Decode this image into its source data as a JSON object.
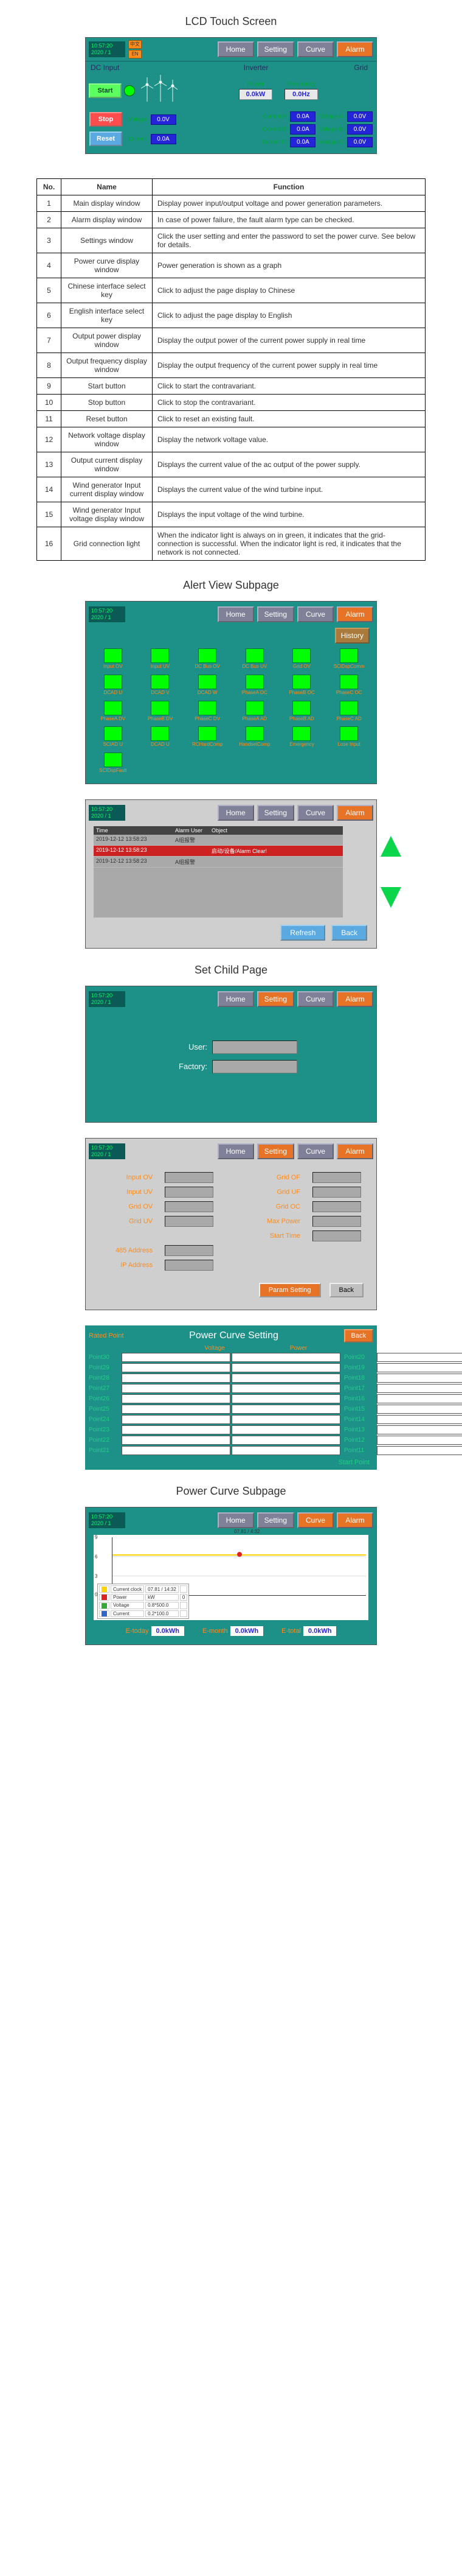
{
  "titles": {
    "main": "LCD Touch Screen",
    "alert": "Alert View Subpage",
    "setChild": "Set Child Page",
    "curve": "Power Curve Subpage"
  },
  "clock": {
    "time": "10:57:20",
    "date": "2020 / 1",
    "light": "0"
  },
  "lang": {
    "cn": "中文",
    "en": "EN"
  },
  "nav": {
    "home": "Home",
    "setting": "Setting",
    "curve": "Curve",
    "alarm": "Alarm"
  },
  "headers": {
    "dc": "DC Input",
    "inv": "Inverter",
    "grid": "Grid"
  },
  "out": {
    "powerLbl": "Power",
    "powerVal": "0.0kW",
    "freqLbl": "Frequency",
    "freqVal": "0.0Hz"
  },
  "btns": {
    "start": "Start",
    "stop": "Stop",
    "reset": "Reset"
  },
  "dc": {
    "voltLbl": "Voltage:",
    "voltVal": "0.0V",
    "curLbl": "Current:",
    "curVal": "0.0A"
  },
  "inv": {
    "iaLbl": "Current A:",
    "iaVal": "0.0A",
    "ibLbl": "Current B:",
    "ibVal": "0.0A",
    "icLbl": "Current C:",
    "icVal": "0.0A"
  },
  "grid": {
    "vaLbl": "Voltage A:",
    "vaVal": "0.0V",
    "vbLbl": "Voltage B:",
    "vbVal": "0.0V",
    "vcLbl": "Voltage C:",
    "vcVal": "0.0V"
  },
  "table": {
    "hNo": "No.",
    "hName": "Name",
    "hFunc": "Function",
    "rows": [
      {
        "no": "1",
        "name": "Main display window",
        "func": "Display power input/output voltage and power generation parameters."
      },
      {
        "no": "2",
        "name": "Alarm display window",
        "func": "In case of power failure, the fault alarm type can be checked."
      },
      {
        "no": "3",
        "name": "Settings window",
        "func": "Click the user setting and enter the password to set the power curve. See below for details."
      },
      {
        "no": "4",
        "name": "Power curve display window",
        "func": "Power generation is shown as a graph"
      },
      {
        "no": "5",
        "name": "Chinese interface select key",
        "func": "Click to adjust the page display to Chinese"
      },
      {
        "no": "6",
        "name": "English interface select key",
        "func": "Click to adjust the page display to English"
      },
      {
        "no": "7",
        "name": "Output power display window",
        "func": "Display the output power of the current power supply in real time"
      },
      {
        "no": "8",
        "name": "Output frequency display window",
        "func": "Display the output frequency of the current power supply in real time"
      },
      {
        "no": "9",
        "name": "Start button",
        "func": "Click to start the contravariant."
      },
      {
        "no": "10",
        "name": "Stop button",
        "func": "Click to stop the contravariant."
      },
      {
        "no": "11",
        "name": "Reset button",
        "func": "Click to reset an existing fault."
      },
      {
        "no": "12",
        "name": "Network voltage display window",
        "func": "Display the network voltage value."
      },
      {
        "no": "13",
        "name": "Output current display window",
        "func": "Displays the current value of the ac output of the power supply."
      },
      {
        "no": "14",
        "name": "Wind generator Input current display window",
        "func": "Displays the current value of the wind turbine input."
      },
      {
        "no": "15",
        "name": "Wind generator Input voltage display window",
        "func": "Displays the input voltage of the wind turbine."
      },
      {
        "no": "16",
        "name": "Grid connection light",
        "func": "When the indicator light is always on in green, it indicates that the grid-connection is successful. When the indicator light is red, it indicates that the network is not connected."
      }
    ]
  },
  "alerts": {
    "history": "History",
    "items": [
      "Input OV",
      "Input UV",
      "DC Bus OV",
      "DC Bus UV",
      "Grid OV",
      "SCIDspComm",
      "DCAD U",
      "DCAD V",
      "DCAD W",
      "PhaseA OC",
      "PhaseB OC",
      "PhaseC OC",
      "PhaseA DV",
      "PhaseB DV",
      "PhaseC DV",
      "PhaseA AD",
      "PhaseB AD",
      "PhaseC AD",
      "SCIAD U",
      "DCAD U",
      "RCHardComp",
      "HandsetComp",
      "Emergency",
      "Lose Input",
      "SCIDspFault"
    ]
  },
  "alertTable": {
    "h1": "Time",
    "h2": "Alarm User",
    "h3": "Object",
    "refresh": "Refresh",
    "back": "Back",
    "rows": [
      {
        "ts": "2019-12-12 13:58:23",
        "user": "A组报警",
        "obj": ""
      },
      {
        "ts": "2019-12-12 13:58:23",
        "user": "",
        "obj": "启动/设备/Alarm Clear!"
      },
      {
        "ts": "2019-12-12 13:58:23",
        "user": "A组报警",
        "obj": ""
      }
    ]
  },
  "login": {
    "userLbl": "User:",
    "factoryLbl": "Factory:"
  },
  "settings": {
    "inOV": "Input OV",
    "inUV": "Input UV",
    "gridOV": "Grid OV",
    "gridUV": "Grid UV",
    "bus": "485 Address",
    "ip": "IP Address",
    "gridOF": "Grid OF",
    "gridUF": "Grid UF",
    "gridOC": "Grid OC",
    "maxP": "Max Power",
    "startT": "Start Time",
    "btnParam": "Param Setting",
    "btnBack": "Back"
  },
  "pcs": {
    "rated": "Rated Point",
    "title": "Power Curve Setting",
    "back": "Back",
    "volt": "Voltage",
    "power": "Power",
    "start": "Start Point",
    "col1": [
      "Point30",
      "Point29",
      "Point28",
      "Point27",
      "Point26",
      "Point25",
      "Point24",
      "Point23",
      "Point22",
      "Point21"
    ],
    "col2": [
      "Point20",
      "Point19",
      "Point18",
      "Point17",
      "Point16",
      "Point15",
      "Point14",
      "Point13",
      "Point12",
      "Point11"
    ],
    "col3": [
      "Point10",
      "Point9",
      "Point8",
      "Point7",
      "Point6",
      "Point5",
      "Point4",
      "Point3",
      "Point2",
      "Point1"
    ]
  },
  "chart": {
    "yticks": [
      "9",
      "6",
      "3",
      "0"
    ],
    "xTs": "07.81 / 4:32",
    "legend": [
      {
        "color": "#ffd400",
        "name": "Current clock",
        "v1": "07.81 / 14:32",
        "v2": ""
      },
      {
        "color": "#d22",
        "name": "Power",
        "v1": "kW",
        "v2": "0"
      },
      {
        "color": "#3a3",
        "name": "Voltage",
        "v1": "0.8*500.0",
        "v2": ""
      },
      {
        "color": "#36c",
        "name": "Current",
        "v1": "0.2*100.0",
        "v2": ""
      }
    ],
    "etodayLbl": "E-today",
    "etodayVal": "0.0kWh",
    "emonthLbl": "E-month",
    "emonthVal": "0.0kWh",
    "etotalLbl": "E-total",
    "etotalVal": "0.0kWh"
  },
  "colors": {
    "tealBg": "#1d9088",
    "accent": "#ff8c1a",
    "navBtn": "#808099",
    "navAlarm": "#e67326",
    "green": "#0f0",
    "pill": "#2424d8"
  }
}
